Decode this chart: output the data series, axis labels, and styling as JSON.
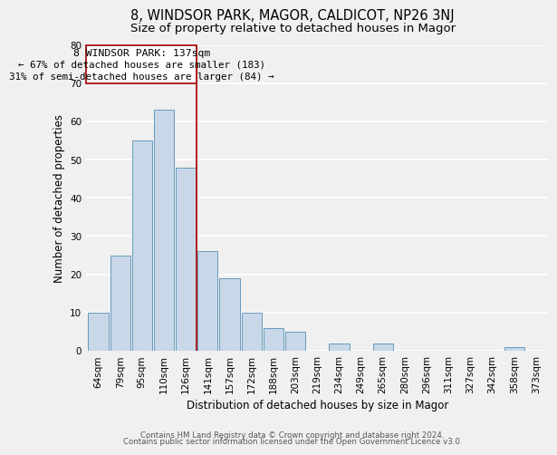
{
  "title": "8, WINDSOR PARK, MAGOR, CALDICOT, NP26 3NJ",
  "subtitle": "Size of property relative to detached houses in Magor",
  "xlabel": "Distribution of detached houses by size in Magor",
  "ylabel": "Number of detached properties",
  "categories": [
    "64sqm",
    "79sqm",
    "95sqm",
    "110sqm",
    "126sqm",
    "141sqm",
    "157sqm",
    "172sqm",
    "188sqm",
    "203sqm",
    "219sqm",
    "234sqm",
    "249sqm",
    "265sqm",
    "280sqm",
    "296sqm",
    "311sqm",
    "327sqm",
    "342sqm",
    "358sqm",
    "373sqm"
  ],
  "values": [
    10,
    25,
    55,
    63,
    48,
    26,
    19,
    10,
    6,
    5,
    0,
    2,
    0,
    2,
    0,
    0,
    0,
    0,
    0,
    1,
    0
  ],
  "bar_color": "#c8d8e8",
  "bar_edge_color": "#6699bb",
  "marker_label": "8 WINDSOR PARK: 137sqm",
  "annotation_line1": "← 67% of detached houses are smaller (183)",
  "annotation_line2": "31% of semi-detached houses are larger (84) →",
  "annotation_box_color": "#ffffff",
  "annotation_box_edge": "#aa1111",
  "marker_line_color": "#aa1111",
  "ylim": [
    0,
    80
  ],
  "yticks": [
    0,
    10,
    20,
    30,
    40,
    50,
    60,
    70,
    80
  ],
  "footer1": "Contains HM Land Registry data © Crown copyright and database right 2024.",
  "footer2": "Contains public sector information licensed under the Open Government Licence v3.0.",
  "background_color": "#f0f0f0",
  "grid_color": "#ffffff",
  "title_fontsize": 10.5,
  "subtitle_fontsize": 9.5,
  "axis_label_fontsize": 8.5,
  "tick_fontsize": 7.5,
  "footer_fontsize": 6.2
}
